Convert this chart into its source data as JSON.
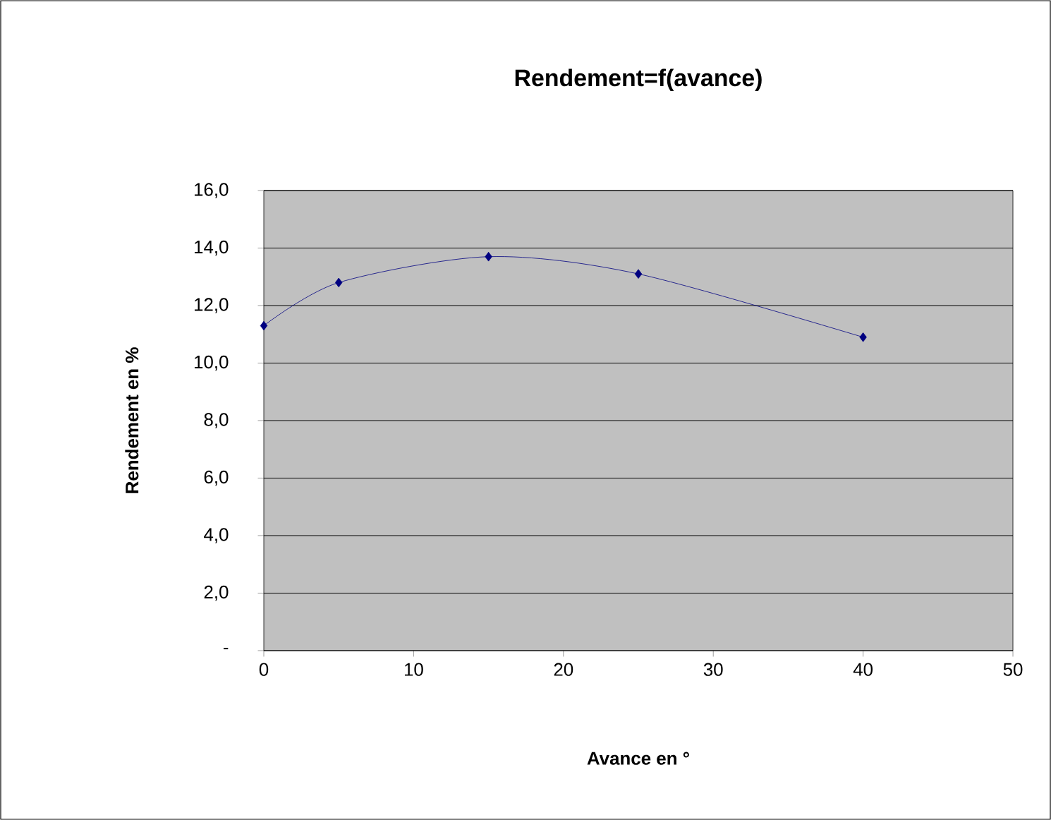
{
  "chart_data": {
    "type": "line",
    "title": "Rendement=f(avance)",
    "xlabel": "Avance en °",
    "ylabel": "Rendement en %",
    "x": [
      0,
      5,
      15,
      25,
      40
    ],
    "series": [
      {
        "color": "#000080",
        "values": [
          11.3,
          12.8,
          13.7,
          13.1,
          10.9
        ]
      }
    ],
    "xlim": [
      0,
      50
    ],
    "xticks": [
      0,
      10,
      20,
      30,
      40,
      50
    ],
    "ylim": [
      0,
      16
    ],
    "yticks": [
      {
        "value": 0,
        "label": "-"
      },
      {
        "value": 2,
        "label": "2,0"
      },
      {
        "value": 4,
        "label": "4,0"
      },
      {
        "value": 6,
        "label": "6,0"
      },
      {
        "value": 8,
        "label": "8,0"
      },
      {
        "value": 10,
        "label": "10,0"
      },
      {
        "value": 12,
        "label": "12,0"
      },
      {
        "value": 14,
        "label": "14,0"
      },
      {
        "value": 16,
        "label": "16,0"
      }
    ],
    "grid": "y",
    "marker": "diamond",
    "line_style": "solid"
  }
}
